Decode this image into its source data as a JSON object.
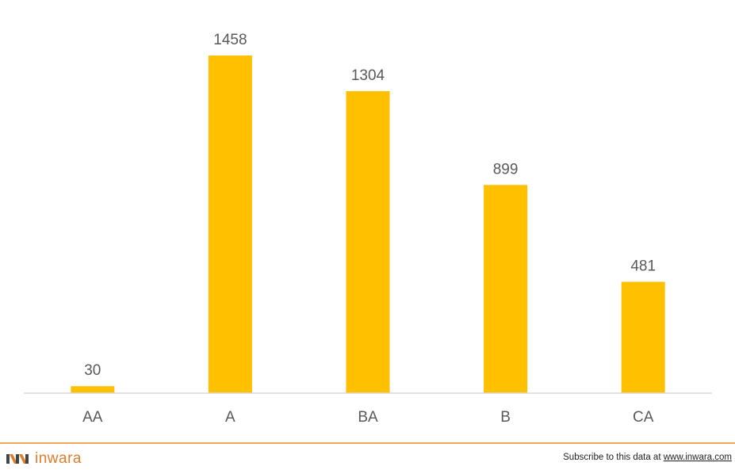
{
  "chart_data": {
    "type": "bar",
    "categories": [
      "AA",
      "A",
      "BA",
      "B",
      "CA"
    ],
    "values": [
      30,
      1458,
      1304,
      899,
      481
    ],
    "title": "",
    "xlabel": "",
    "ylabel": "",
    "ylim": [
      0,
      1500
    ],
    "grid": false,
    "legend": "none",
    "data_labels": true,
    "bar_color": "#ffc000",
    "axis_color": "#d9d9d9",
    "label_color": "#595959"
  },
  "footer": {
    "brand_name": "inwara",
    "brand_color": "#e07d2a",
    "subscribe_prefix": "Subscribe to this data at ",
    "subscribe_link": "www.inwara.com"
  }
}
